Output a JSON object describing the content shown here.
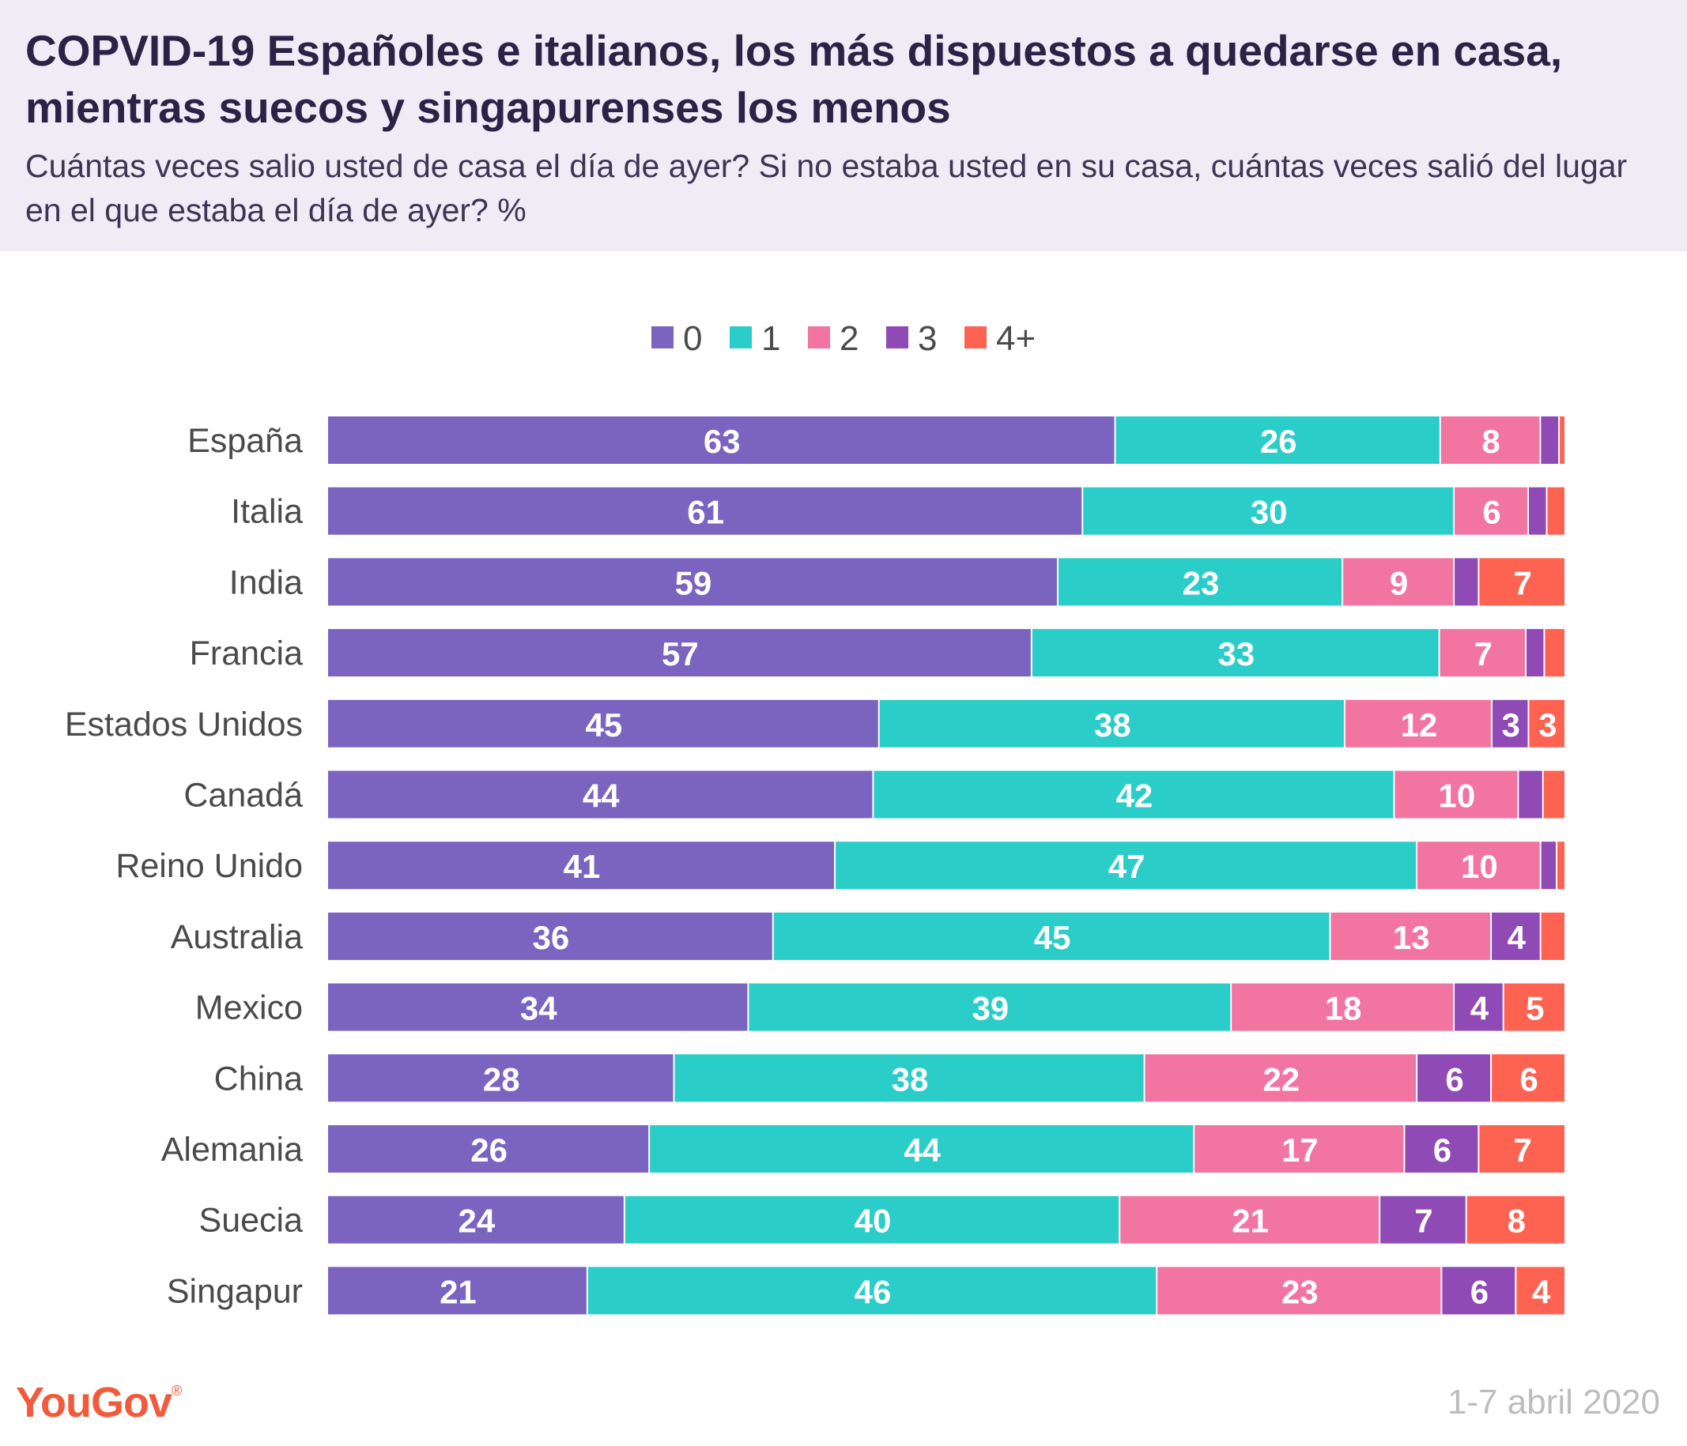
{
  "header": {
    "title": "COPVID-19 Españoles e italianos, los más dispuestos a quedarse en casa, mientras suecos y singapurenses los menos",
    "subtitle": "Cuántas veces salio usted de casa el día de ayer? Si no estaba usted en su casa, cuántas veces salió del lugar en el que estaba el día de ayer? %"
  },
  "footer": {
    "logo": "YouGov",
    "date": "1-7 abril 2020"
  },
  "chart_data": {
    "type": "bar",
    "orientation": "horizontal",
    "stacked": true,
    "categories": [
      "España",
      "Italia",
      "India",
      "Francia",
      "Estados Unidos",
      "Canadá",
      "Reino Unido",
      "Australia",
      "Mexico",
      "China",
      "Alemania",
      "Suecia",
      "Singapur"
    ],
    "series": [
      {
        "name": "0",
        "color": "#7b64c0",
        "values": [
          63,
          61,
          59,
          57,
          45,
          44,
          41,
          36,
          34,
          28,
          26,
          24,
          21
        ]
      },
      {
        "name": "1",
        "color": "#2bcdc8",
        "values": [
          26,
          30,
          23,
          33,
          38,
          42,
          47,
          45,
          39,
          38,
          44,
          40,
          46
        ]
      },
      {
        "name": "2",
        "color": "#f274a1",
        "values": [
          8,
          6,
          9,
          7,
          12,
          10,
          10,
          13,
          18,
          22,
          17,
          21,
          23
        ]
      },
      {
        "name": "3",
        "color": "#8f4ab6",
        "values": [
          1.5,
          1.5,
          2,
          1.5,
          3,
          2,
          1.3,
          4,
          4,
          6,
          6,
          7,
          6
        ]
      },
      {
        "name": "4+",
        "color": "#fe6352",
        "values": [
          0.5,
          1.5,
          7,
          1.7,
          3,
          1.8,
          0.7,
          2,
          5,
          6,
          7,
          8,
          4
        ]
      }
    ],
    "data_labels": [
      [
        "63",
        "26",
        "8",
        "",
        ""
      ],
      [
        "61",
        "30",
        "6",
        "",
        ""
      ],
      [
        "59",
        "23",
        "9",
        "",
        "7"
      ],
      [
        "57",
        "33",
        "7",
        "",
        ""
      ],
      [
        "45",
        "38",
        "12",
        "3",
        "3"
      ],
      [
        "44",
        "42",
        "10",
        "",
        ""
      ],
      [
        "41",
        "47",
        "10",
        "",
        ""
      ],
      [
        "36",
        "45",
        "13",
        "4",
        ""
      ],
      [
        "34",
        "39",
        "18",
        "4",
        "5"
      ],
      [
        "28",
        "38",
        "22",
        "6",
        "6"
      ],
      [
        "26",
        "44",
        "17",
        "6",
        "7"
      ],
      [
        "24",
        "40",
        "21",
        "7",
        "8"
      ],
      [
        "21",
        "46",
        "23",
        "6",
        "4"
      ]
    ],
    "legend_position": "top-center",
    "grid": false
  }
}
